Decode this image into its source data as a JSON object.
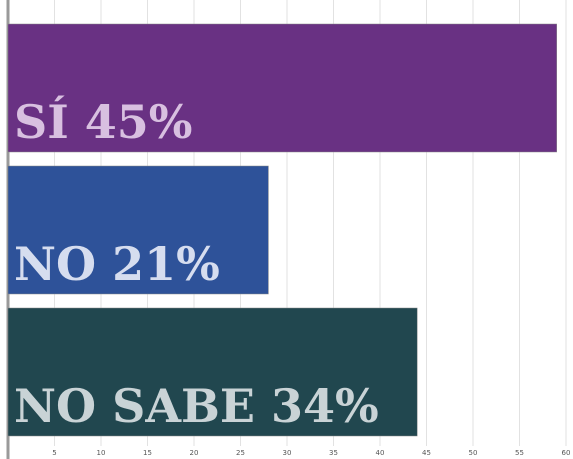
{
  "chart_data": {
    "type": "hbar",
    "categories": [
      "SÍ  45%",
      "NO  21%",
      "NO SABE  34%"
    ],
    "values": [
      59,
      28,
      44
    ],
    "colors": [
      "#693183",
      "#2e5299",
      "#21474f"
    ],
    "label_colors": [
      "#d8c0e0",
      "#d6ddef",
      "#c9d3d6"
    ],
    "xlim": [
      0,
      60
    ],
    "xticks": [
      5,
      10,
      15,
      20,
      25,
      30,
      35,
      40,
      45,
      50,
      55,
      60
    ],
    "grid": true
  }
}
